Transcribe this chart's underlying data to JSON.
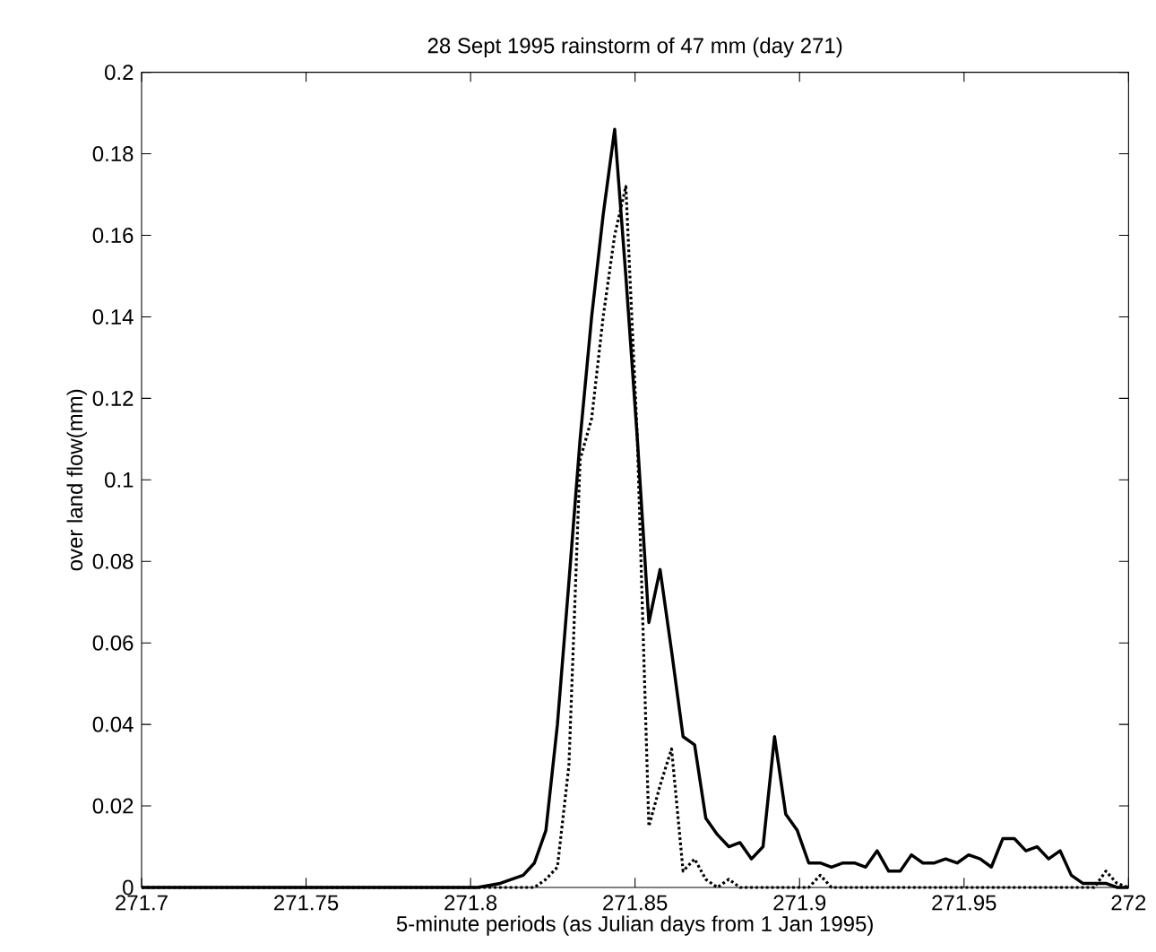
{
  "chart_data": {
    "type": "line",
    "title": "28 Sept 1995 rainstorm of 47 mm (day 271)",
    "xlabel": "5-minute periods (as Julian days from 1 Jan 1995)",
    "ylabel": "over land flow(mm)",
    "x": [
      271.7,
      271.7986,
      271.8021,
      271.8056,
      271.809,
      271.8125,
      271.816,
      271.8194,
      271.8229,
      271.8264,
      271.8299,
      271.8333,
      271.8368,
      271.8403,
      271.8438,
      271.8472,
      271.8507,
      271.8542,
      271.8576,
      271.8611,
      271.8646,
      271.8681,
      271.8715,
      271.875,
      271.8785,
      271.8819,
      271.8854,
      271.8889,
      271.8924,
      271.8958,
      271.8993,
      271.9028,
      271.9063,
      271.9097,
      271.9132,
      271.9167,
      271.9201,
      271.9236,
      271.9271,
      271.9306,
      271.934,
      271.9375,
      271.941,
      271.9444,
      271.9479,
      271.9514,
      271.9549,
      271.9583,
      271.9618,
      271.9653,
      271.9688,
      271.9722,
      271.9757,
      271.9792,
      271.9826,
      271.9861,
      271.9896,
      271.9931,
      271.9965,
      272
    ],
    "series": [
      {
        "color": "#000000",
        "line_style": "solid",
        "values": [
          0,
          0,
          0,
          0.0005,
          0.001,
          0.002,
          0.003,
          0.006,
          0.014,
          0.04,
          0.075,
          0.11,
          0.14,
          0.165,
          0.186,
          0.15,
          0.11,
          0.065,
          0.078,
          0.058,
          0.037,
          0.035,
          0.017,
          0.013,
          0.01,
          0.011,
          0.007,
          0.01,
          0.037,
          0.018,
          0.014,
          0.006,
          0.006,
          0.005,
          0.006,
          0.006,
          0.005,
          0.009,
          0.004,
          0.004,
          0.008,
          0.006,
          0.006,
          0.007,
          0.006,
          0.008,
          0.007,
          0.005,
          0.012,
          0.012,
          0.009,
          0.01,
          0.007,
          0.009,
          0.003,
          0.001,
          0.001,
          0.001,
          0,
          0
        ]
      },
      {
        "color": "#000000",
        "line_style": "dotted",
        "values": [
          0,
          0,
          0,
          0,
          0,
          0,
          0,
          0,
          0.002,
          0.005,
          0.03,
          0.105,
          0.115,
          0.14,
          0.16,
          0.172,
          0.11,
          0.015,
          0.025,
          0.034,
          0.004,
          0.007,
          0.002,
          0,
          0.002,
          0,
          0,
          0,
          0,
          0,
          0,
          0,
          0.003,
          0,
          0,
          0,
          0,
          0,
          0,
          0,
          0,
          0,
          0,
          0,
          0,
          0,
          0,
          0,
          0,
          0,
          0,
          0,
          0,
          0,
          0,
          0,
          0,
          0.004,
          0.001,
          0
        ]
      }
    ],
    "xlim": [
      271.7,
      272
    ],
    "xticks": [
      271.7,
      271.75,
      271.8,
      271.85,
      271.9,
      271.95,
      272
    ],
    "ylim": [
      0,
      0.2
    ],
    "yticks": [
      0,
      0.02,
      0.04,
      0.06,
      0.08,
      0.1,
      0.12,
      0.14,
      0.16,
      0.18,
      0.2
    ],
    "grid": false,
    "marker": "none"
  }
}
